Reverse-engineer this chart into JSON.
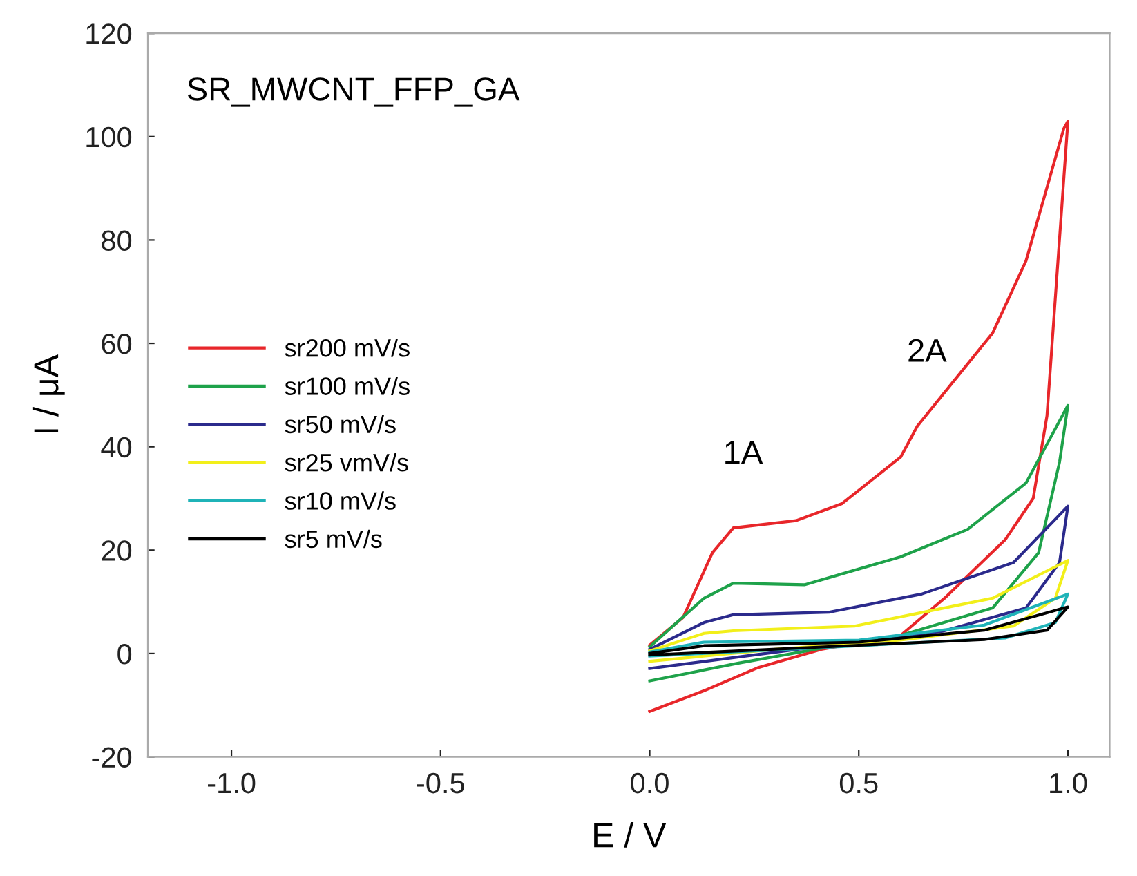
{
  "chart_data": {
    "type": "line",
    "title": "SR_MWCNT_FFP_GA",
    "xlabel": "E / V",
    "ylabel": "I / μA",
    "xlim": [
      -1.2,
      1.1
    ],
    "xticks": [
      {
        "value": -1.0,
        "label": "-1.0"
      },
      {
        "value": -0.5,
        "label": "-0.5"
      },
      {
        "value": 0.0,
        "label": "0.0"
      },
      {
        "value": 0.5,
        "label": "0.5"
      },
      {
        "value": 1.0,
        "label": "1.0"
      }
    ],
    "ylim": [
      -20,
      120
    ],
    "yticks": [
      -20,
      0,
      20,
      40,
      60,
      80,
      100,
      120
    ],
    "grid": false,
    "legend": "left",
    "marker": "none",
    "line_style": "solid",
    "annotations": [
      {
        "text": "1A",
        "x": 0.2,
        "y": 24.3
      },
      {
        "text": "2A",
        "x": 0.64,
        "y": 44
      }
    ],
    "series": [
      {
        "name": "sr200 mV/s",
        "color": "#e8262a",
        "x": [
          0,
          0.08,
          0.15,
          0.2,
          0.35,
          0.46,
          0.6,
          0.64,
          0.72,
          0.82,
          0.9,
          0.99,
          1.0,
          0.95,
          0.917,
          0.85,
          0.705,
          0.6,
          0.41,
          0.26,
          0.13,
          0
        ],
        "values": [
          1.6,
          7,
          19.5,
          24.3,
          25.7,
          29,
          38,
          44,
          52,
          62,
          76,
          101.5,
          103,
          46,
          30,
          22,
          10.7,
          3.5,
          0.8,
          -2.7,
          -7.2,
          -11.2
        ]
      },
      {
        "name": "sr100 mV/s",
        "color": "#1ea24a",
        "x": [
          0,
          0.13,
          0.2,
          0.37,
          0.6,
          0.76,
          0.9,
          1.0,
          0.98,
          0.93,
          0.82,
          0.6,
          0.43,
          0.21,
          0
        ],
        "values": [
          1.3,
          10.7,
          13.6,
          13.3,
          18.7,
          24,
          33,
          48,
          37,
          19.5,
          8.8,
          3.5,
          1.3,
          -1.9,
          -5.3
        ]
      },
      {
        "name": "sr50 mV/s",
        "color": "#2b2a8c",
        "x": [
          0,
          0.13,
          0.2,
          0.43,
          0.65,
          0.87,
          1.0,
          0.98,
          0.9,
          0.7,
          0.43,
          0.21,
          0
        ],
        "values": [
          0.8,
          6,
          7.5,
          8,
          11.5,
          17.6,
          28.5,
          17.6,
          8.8,
          4.3,
          1.6,
          -0.7,
          -2.9
        ]
      },
      {
        "name": "sr25 vmV/s",
        "color": "#f2ef1a",
        "x": [
          0,
          0.13,
          0.2,
          0.49,
          0.82,
          1.0,
          0.97,
          0.87,
          0.6,
          0.3,
          0
        ],
        "values": [
          0.5,
          3.9,
          4.4,
          5.3,
          10.7,
          18,
          10.7,
          5.3,
          2.6,
          0.8,
          -1.5
        ]
      },
      {
        "name": "sr10 mV/s",
        "color": "#1fb3b8",
        "x": [
          0,
          0.13,
          0.5,
          0.8,
          1.0,
          0.97,
          0.85,
          0.5,
          0
        ],
        "values": [
          0.3,
          2.2,
          2.6,
          5.5,
          11.5,
          6,
          3,
          1.5,
          -0.5
        ]
      },
      {
        "name": "sr5 mV/s",
        "color": "#000000",
        "x": [
          0,
          0.13,
          0.5,
          0.8,
          1.0,
          0.95,
          0.8,
          0.5,
          0
        ],
        "values": [
          0,
          1.5,
          2.2,
          4.5,
          9,
          4.5,
          2.7,
          1.6,
          -0.3
        ]
      }
    ]
  }
}
